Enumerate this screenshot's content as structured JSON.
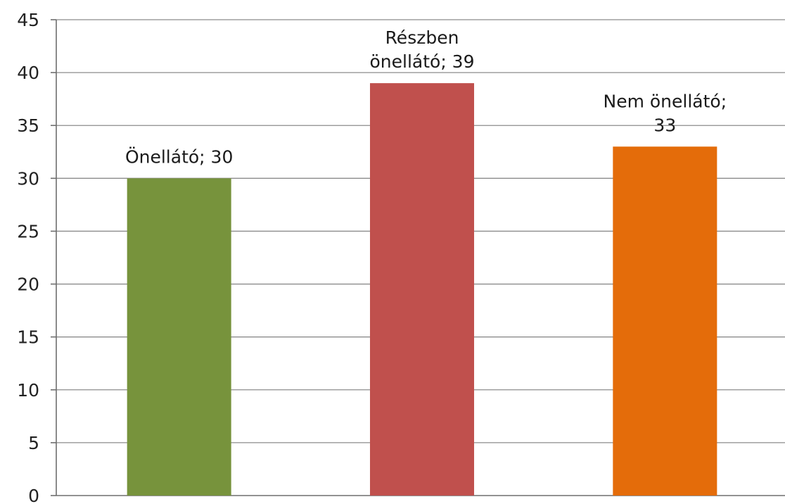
{
  "chart_data": {
    "type": "bar",
    "title": "",
    "xlabel": "",
    "ylabel": "",
    "ylim": [
      0,
      45
    ],
    "yticks": [
      0,
      5,
      10,
      15,
      20,
      25,
      30,
      35,
      40,
      45
    ],
    "grid": true,
    "legend": "none",
    "categories": [
      "Önellátó",
      "Részben önellátó",
      "Nem önellátó"
    ],
    "values": [
      30,
      39,
      33
    ],
    "data_labels": [
      [
        "Önellátó; 30"
      ],
      [
        "Részben",
        "önellátó; 39"
      ],
      [
        "Nem önellátó;",
        "33"
      ]
    ],
    "colors": [
      "#77933c",
      "#c0504d",
      "#e46c0a"
    ]
  }
}
